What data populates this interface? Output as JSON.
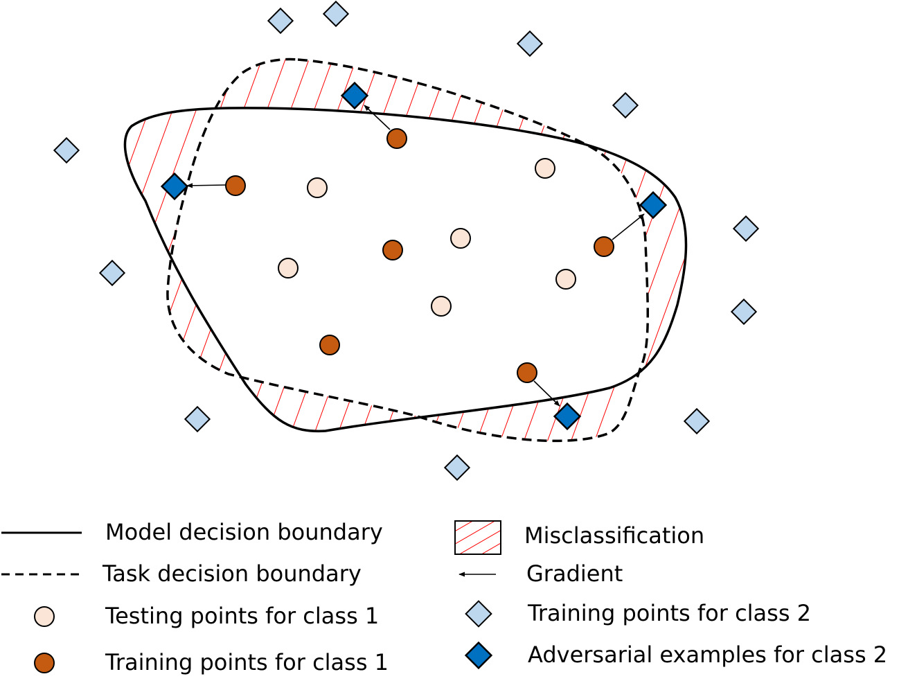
{
  "colors": {
    "testing_class1": "#fbe5d6",
    "training_class1": "#c55a11",
    "training_class2": "#bdd7ee",
    "adversarial_class2": "#0070c0",
    "misclassification_hatch": "#ff0000",
    "boundary": "#000000"
  },
  "legend": {
    "model_boundary": "Model decision boundary",
    "task_boundary": "Task decision boundary",
    "testing_class1": "Testing points for class 1",
    "training_class1": "Training points for class 1",
    "misclassification": "Misclassification",
    "gradient": "Gradient",
    "training_class2": "Training points for class 2",
    "adversarial_class2": "Adversarial examples for class 2"
  }
}
